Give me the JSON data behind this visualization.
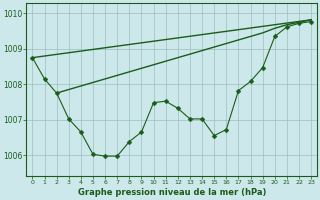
{
  "background_color": "#cde8ea",
  "grid_color": "#9bbdbe",
  "line_color": "#1a5c1a",
  "title": "Graphe pression niveau de la mer (hPa)",
  "ylim": [
    1005.4,
    1010.3
  ],
  "xlim": [
    -0.5,
    23.5
  ],
  "yticks": [
    1006,
    1007,
    1008,
    1009,
    1010
  ],
  "xticks": [
    0,
    1,
    2,
    3,
    4,
    5,
    6,
    7,
    8,
    9,
    10,
    11,
    12,
    13,
    14,
    15,
    16,
    17,
    18,
    19,
    20,
    21,
    22,
    23
  ],
  "line1_x": [
    0,
    23
  ],
  "line1_y": [
    1008.75,
    1009.82
  ],
  "line2_x": [
    2,
    19,
    20,
    21,
    22,
    23
  ],
  "line2_y": [
    1007.75,
    1009.45,
    1009.58,
    1009.68,
    1009.75,
    1009.82
  ],
  "line3_x": [
    0,
    1,
    2,
    3,
    4,
    5,
    6,
    7,
    8,
    9,
    10,
    11,
    12,
    13,
    14,
    15,
    16,
    17,
    18,
    19,
    20,
    21,
    22,
    23
  ],
  "line3_y": [
    1008.75,
    1008.15,
    1007.75,
    1007.02,
    1006.65,
    1006.02,
    1005.97,
    1005.97,
    1006.38,
    1006.65,
    1007.48,
    1007.52,
    1007.32,
    1007.02,
    1007.02,
    1006.55,
    1006.72,
    1007.82,
    1008.08,
    1008.47,
    1009.35,
    1009.62,
    1009.72,
    1009.77
  ]
}
